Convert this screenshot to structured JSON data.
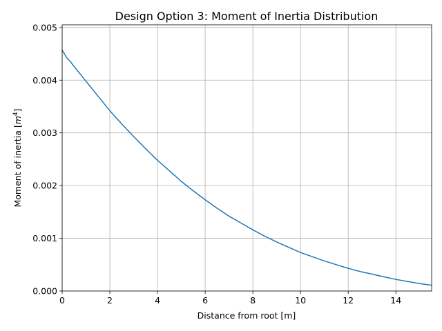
{
  "chart_data": {
    "type": "line",
    "title": "Design Option 3: Moment of Inertia Distribution",
    "xlabel": "Distance from root [m]",
    "ylabel_prefix": "Moment of inertia [",
    "ylabel_var": "m",
    "ylabel_exp": "4",
    "ylabel_suffix": "]",
    "xlim": [
      0,
      15.5
    ],
    "ylim": [
      0,
      0.00505
    ],
    "xticks": [
      0,
      2,
      4,
      6,
      8,
      10,
      12,
      14
    ],
    "xtick_labels": [
      "0",
      "2",
      "4",
      "6",
      "8",
      "10",
      "12",
      "14"
    ],
    "yticks": [
      0,
      0.001,
      0.002,
      0.003,
      0.004,
      0.005
    ],
    "ytick_labels": [
      "0.000",
      "0.001",
      "0.002",
      "0.003",
      "0.004",
      "0.005"
    ],
    "grid": true,
    "series": [
      {
        "color": "#1f77b4",
        "x": [
          0,
          0.2,
          0.35,
          0.5,
          1,
          1.5,
          2,
          2.5,
          3,
          3.5,
          4,
          4.5,
          5,
          5.5,
          6,
          6.5,
          7,
          7.5,
          8,
          8.5,
          9,
          9.5,
          10,
          10.5,
          11,
          11.5,
          12,
          12.5,
          13,
          13.5,
          14,
          14.5,
          15,
          15.5
        ],
        "y": [
          0.00457,
          0.00442,
          0.00435,
          0.00426,
          0.00398,
          0.0037,
          0.00342,
          0.00317,
          0.00293,
          0.0027,
          0.00248,
          0.00228,
          0.00208,
          0.0019,
          0.00173,
          0.00157,
          0.00142,
          0.00129,
          0.00116,
          0.00104,
          0.00093,
          0.00083,
          0.00073,
          0.00065,
          0.00057,
          0.0005,
          0.00043,
          0.00037,
          0.00032,
          0.00027,
          0.00022,
          0.00018,
          0.00014,
          0.00011
        ]
      }
    ]
  }
}
